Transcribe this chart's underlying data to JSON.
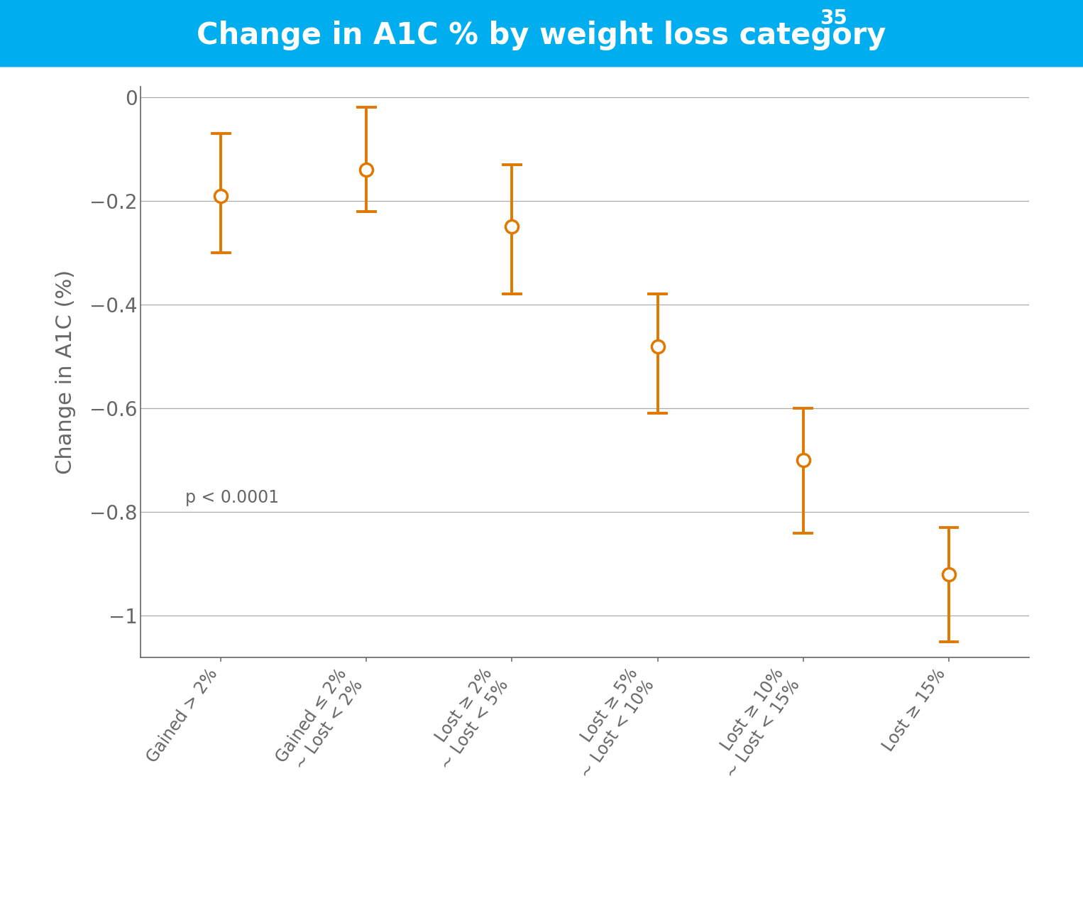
{
  "title": "Change in A1C % by weight loss category",
  "title_superscript": "35",
  "ylabel": "Change in A1C (%)",
  "title_bg_color": "#00AEEF",
  "title_text_color": "#FFFFFF",
  "point_color": "#E07800",
  "categories": [
    "Gained > 2%",
    "Gained ≤ 2%\n~ Lost < 2%",
    "Lost ≥ 2%\n~ Lost < 5%",
    "Lost ≥ 5%\n~ Lost < 10%",
    "Lost ≥ 10%\n~ Lost < 15%",
    "Lost ≥ 15%"
  ],
  "means": [
    -0.19,
    -0.14,
    -0.25,
    -0.48,
    -0.7,
    -0.92
  ],
  "ci_lower": [
    -0.3,
    -0.22,
    -0.38,
    -0.61,
    -0.84,
    -1.05
  ],
  "ci_upper": [
    -0.07,
    -0.02,
    -0.13,
    -0.38,
    -0.6,
    -0.83
  ],
  "ylim": [
    -1.08,
    0.02
  ],
  "yticks": [
    0,
    -0.2,
    -0.4,
    -0.6,
    -0.8,
    -1.0
  ],
  "ytick_labels": [
    "0",
    "−0.2",
    "−0.4",
    "−0.6",
    "−0.8",
    "−1"
  ],
  "annotation": "p < 0.0001",
  "bg_color": "#FFFFFF",
  "grid_color": "#AAAAAA",
  "axis_color": "#666666",
  "tick_color": "#666666",
  "label_color": "#666666",
  "title_fontsize": 30,
  "sup_fontsize": 20,
  "ylabel_fontsize": 22,
  "ytick_fontsize": 20,
  "xtick_fontsize": 17,
  "annot_fontsize": 17
}
